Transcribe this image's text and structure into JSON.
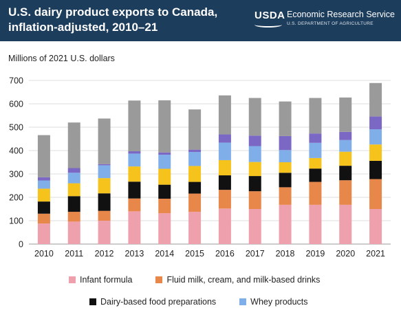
{
  "header": {
    "title_line1": "U.S. dairy product exports to Canada,",
    "title_line2": "inflation-adjusted, 2010–21",
    "logo_usda": "USDA",
    "logo_ers": "Economic Research Service",
    "logo_dept": "U.S. DEPARTMENT OF AGRICULTURE"
  },
  "colors": {
    "header_bg": "#1d3d5c",
    "infant_formula": "#eea0ad",
    "fluid_milk": "#e8874a",
    "dairy_food_prep": "#111111",
    "series4": "#f5c31c",
    "whey": "#7faee8",
    "series6": "#7b68c4",
    "series7": "#9a9a9a"
  },
  "chart_data": {
    "type": "bar",
    "stacked": true,
    "title": "U.S. dairy product exports to Canada, inflation-adjusted, 2010–21",
    "ylabel": "Millions of 2021 U.S. dollars",
    "ylim": [
      0,
      700
    ],
    "yticks": [
      0,
      100,
      200,
      300,
      400,
      500,
      600,
      700
    ],
    "grid": true,
    "categories": [
      "2010",
      "2011",
      "2012",
      "2013",
      "2014",
      "2015",
      "2016",
      "2017",
      "2018",
      "2019",
      "2020",
      "2021"
    ],
    "series": [
      {
        "name": "Infant formula",
        "color": "#eea0ad",
        "values": [
          88,
          96,
          100,
          140,
          132,
          138,
          152,
          150,
          168,
          168,
          168,
          150
        ]
      },
      {
        "name": "Fluid milk, cream, and milk-based drinks",
        "color": "#e8874a",
        "values": [
          42,
          42,
          42,
          55,
          62,
          78,
          80,
          76,
          75,
          98,
          105,
          128
        ]
      },
      {
        "name": "Dairy-based food preparations",
        "color": "#111111",
        "values": [
          52,
          67,
          75,
          72,
          60,
          50,
          62,
          65,
          62,
          57,
          62,
          78
        ]
      },
      {
        "color": "#f5c31c",
        "values": [
          55,
          55,
          65,
          65,
          68,
          68,
          65,
          60,
          45,
          45,
          60,
          70
        ]
      },
      {
        "name": "Whey products",
        "color": "#7faee8",
        "values": [
          35,
          45,
          55,
          55,
          60,
          60,
          75,
          68,
          52,
          65,
          50,
          65
        ]
      },
      {
        "color": "#7b68c4",
        "values": [
          14,
          20,
          5,
          10,
          10,
          10,
          35,
          45,
          60,
          40,
          35,
          55
        ]
      },
      {
        "color": "#9a9a9a",
        "values": [
          180,
          195,
          195,
          217,
          223,
          172,
          167,
          161,
          148,
          152,
          147,
          143
        ]
      }
    ]
  },
  "legend": [
    {
      "label": "Infant formula",
      "color": "#eea0ad"
    },
    {
      "label": "Fluid milk, cream, and milk-based drinks",
      "color": "#e8874a"
    },
    {
      "label": "Dairy-based food preparations",
      "color": "#111111"
    },
    {
      "label": "Whey products",
      "color": "#7faee8"
    }
  ]
}
